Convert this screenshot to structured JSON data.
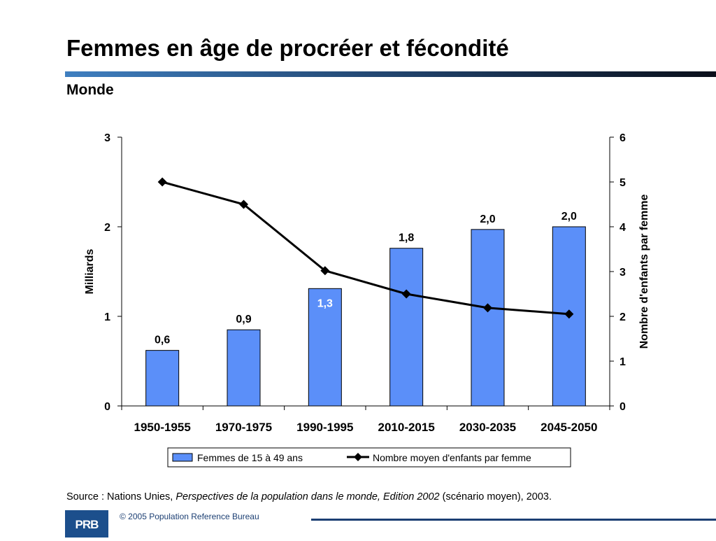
{
  "slide": {
    "title": "Femmes en âge de procréer et fécondité",
    "subtitle": "Monde",
    "source_prefix": "Source : Nations Unies, ",
    "source_italic": "Perspectives de la population dans le monde, Edition 2002",
    "source_suffix": " (scénario moyen), 2003.",
    "logo_text": "PRB",
    "copyright": "© 2005 Population Reference Bureau"
  },
  "colors": {
    "bar_fill": "#5b8ff9",
    "bar_stroke": "#000000",
    "line": "#000000",
    "title_bar_start": "#3f7fc0",
    "title_bar_end": "#0a0f1a",
    "logo": "#1c4f8c"
  },
  "chart_data": {
    "type": "bar",
    "categories": [
      "1950-1955",
      "1970-1975",
      "1990-1995",
      "2010-2015",
      "2030-2035",
      "2045-2050"
    ],
    "series": [
      {
        "name": "Femmes de 15 à 49 ans",
        "type": "bar",
        "axis": "left",
        "values": [
          0.62,
          0.85,
          1.31,
          1.76,
          1.97,
          2.0
        ],
        "labels": [
          "0,6",
          "0,9",
          "1,3",
          "1,8",
          "2,0",
          "2,0"
        ]
      },
      {
        "name": "Nombre moyen d'enfants par femme",
        "type": "line",
        "axis": "right",
        "marker": "diamond",
        "values": [
          5.0,
          4.5,
          3.02,
          2.5,
          2.19,
          2.05
        ]
      }
    ],
    "ylabel": "Milliards",
    "y2label": "Nombre d'enfants par femme",
    "ylim": [
      0,
      3
    ],
    "y2lim": [
      0,
      6
    ],
    "yticks": [
      "0",
      "1",
      "2",
      "3"
    ],
    "y2ticks": [
      "0",
      "1",
      "2",
      "3",
      "4",
      "5",
      "6"
    ],
    "grid": false,
    "legend_position": "bottom"
  }
}
